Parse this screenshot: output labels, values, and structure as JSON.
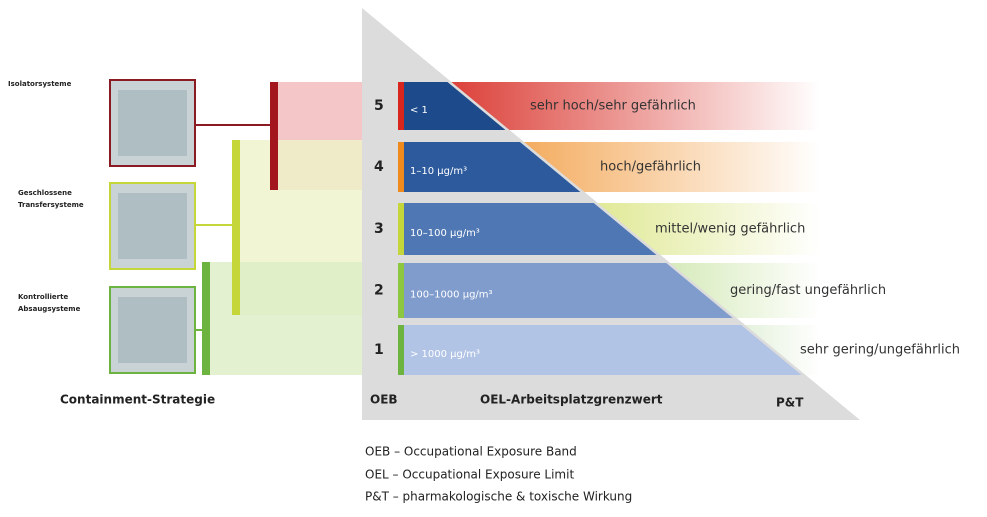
{
  "left": {
    "items": [
      {
        "label": [
          "Isolatorsysteme"
        ]
      },
      {
        "label": [
          "Geschlossene",
          "Transfersysteme"
        ]
      },
      {
        "label": [
          "Kontrollierte",
          "Absaugsysteme"
        ]
      }
    ],
    "caption": "Containment-Strategie"
  },
  "pyramid": {
    "levels": [
      {
        "oeb": "5",
        "oel": "< 1",
        "hazard": "sehr hoch/sehr gefährlich"
      },
      {
        "oeb": "4",
        "oel": "1–10 µg/m³",
        "hazard": "hoch/gefährlich"
      },
      {
        "oeb": "3",
        "oel": "10–100 µg/m³",
        "hazard": "mittel/wenig gefährlich"
      },
      {
        "oeb": "2",
        "oel": "100–1000 µg/m³",
        "hazard": "gering/fast ungefährlich"
      },
      {
        "oeb": "1",
        "oel": "> 1000 µg/m³",
        "hazard": "sehr gering/ungefährlich"
      }
    ],
    "footer": {
      "oeb": "OEB",
      "oel": "OEL-Arbeitsplatzgrenzwert",
      "pt": "P&T"
    }
  },
  "legend": [
    "OEB – Occupational Exposure Band",
    "OEL – Occupational Exposure Limit",
    "P&T – pharmakologische & toxische Wirkung"
  ]
}
